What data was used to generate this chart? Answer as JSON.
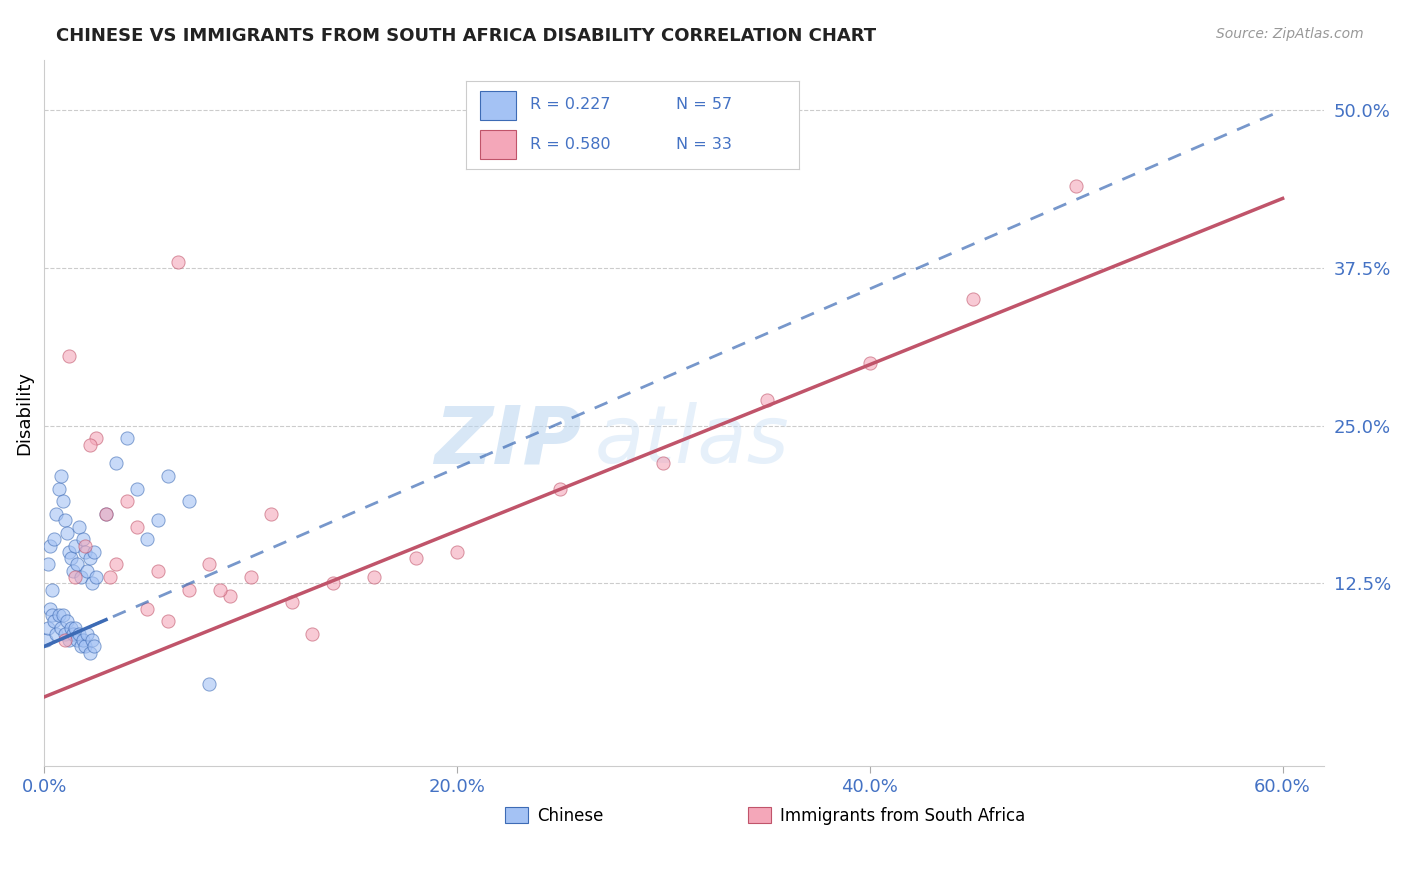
{
  "title": "CHINESE VS IMMIGRANTS FROM SOUTH AFRICA DISABILITY CORRELATION CHART",
  "source_text": "Source: ZipAtlas.com",
  "tick_color": "#4472c4",
  "ylabel": "Disability",
  "x_tick_labels": [
    "0.0%",
    "20.0%",
    "40.0%",
    "60.0%"
  ],
  "x_tick_positions": [
    0.0,
    20.0,
    40.0,
    60.0
  ],
  "y_tick_labels": [
    "12.5%",
    "25.0%",
    "37.5%",
    "50.0%"
  ],
  "y_tick_positions": [
    12.5,
    25.0,
    37.5,
    50.0
  ],
  "xlim": [
    0.0,
    62.0
  ],
  "ylim": [
    -2.0,
    54.0
  ],
  "chinese_color": "#a4c2f4",
  "sa_color": "#f4a7b9",
  "chinese_line_color": "#3d6bb5",
  "sa_line_color": "#c0546a",
  "legend_label1": "Chinese",
  "legend_label2": "Immigrants from South Africa",
  "watermark_zip": "ZIP",
  "watermark_atlas": "atlas",
  "chinese_x": [
    0.2,
    0.3,
    0.4,
    0.5,
    0.6,
    0.7,
    0.8,
    0.9,
    1.0,
    1.1,
    1.2,
    1.3,
    1.4,
    1.5,
    1.6,
    1.7,
    1.8,
    1.9,
    2.0,
    2.1,
    2.2,
    2.3,
    2.4,
    2.5,
    0.1,
    0.2,
    0.3,
    0.4,
    0.5,
    0.6,
    0.7,
    0.8,
    0.9,
    1.0,
    1.1,
    1.2,
    1.3,
    1.4,
    1.5,
    1.6,
    1.7,
    1.8,
    1.9,
    2.0,
    2.1,
    2.2,
    2.3,
    2.4,
    3.0,
    3.5,
    4.0,
    4.5,
    5.0,
    5.5,
    6.0,
    7.0,
    8.0
  ],
  "chinese_y": [
    14.0,
    15.5,
    12.0,
    16.0,
    18.0,
    20.0,
    21.0,
    19.0,
    17.5,
    16.5,
    15.0,
    14.5,
    13.5,
    15.5,
    14.0,
    17.0,
    13.0,
    16.0,
    15.0,
    13.5,
    14.5,
    12.5,
    15.0,
    13.0,
    8.0,
    9.0,
    10.5,
    10.0,
    9.5,
    8.5,
    10.0,
    9.0,
    10.0,
    8.5,
    9.5,
    8.0,
    9.0,
    8.5,
    9.0,
    8.0,
    8.5,
    7.5,
    8.0,
    7.5,
    8.5,
    7.0,
    8.0,
    7.5,
    18.0,
    22.0,
    24.0,
    20.0,
    16.0,
    17.5,
    21.0,
    19.0,
    4.5
  ],
  "sa_x": [
    1.0,
    1.5,
    2.0,
    2.5,
    3.0,
    3.5,
    4.0,
    4.5,
    5.0,
    5.5,
    6.0,
    7.0,
    8.0,
    9.0,
    10.0,
    11.0,
    12.0,
    14.0,
    16.0,
    18.0,
    20.0,
    25.0,
    30.0,
    35.0,
    40.0,
    45.0,
    50.0,
    1.2,
    2.2,
    3.2,
    6.5,
    8.5,
    13.0
  ],
  "sa_y": [
    8.0,
    13.0,
    15.5,
    24.0,
    18.0,
    14.0,
    19.0,
    17.0,
    10.5,
    13.5,
    9.5,
    12.0,
    14.0,
    11.5,
    13.0,
    18.0,
    11.0,
    12.5,
    13.0,
    14.5,
    15.0,
    20.0,
    22.0,
    27.0,
    30.0,
    35.0,
    44.0,
    30.5,
    23.5,
    13.0,
    38.0,
    12.0,
    8.5
  ],
  "blue_line_x0": 0.0,
  "blue_line_y0": 7.5,
  "blue_line_x1": 60.0,
  "blue_line_y1": 50.0,
  "pink_line_x0": 0.0,
  "pink_line_y0": 3.5,
  "pink_line_x1": 60.0,
  "pink_line_y1": 43.0
}
